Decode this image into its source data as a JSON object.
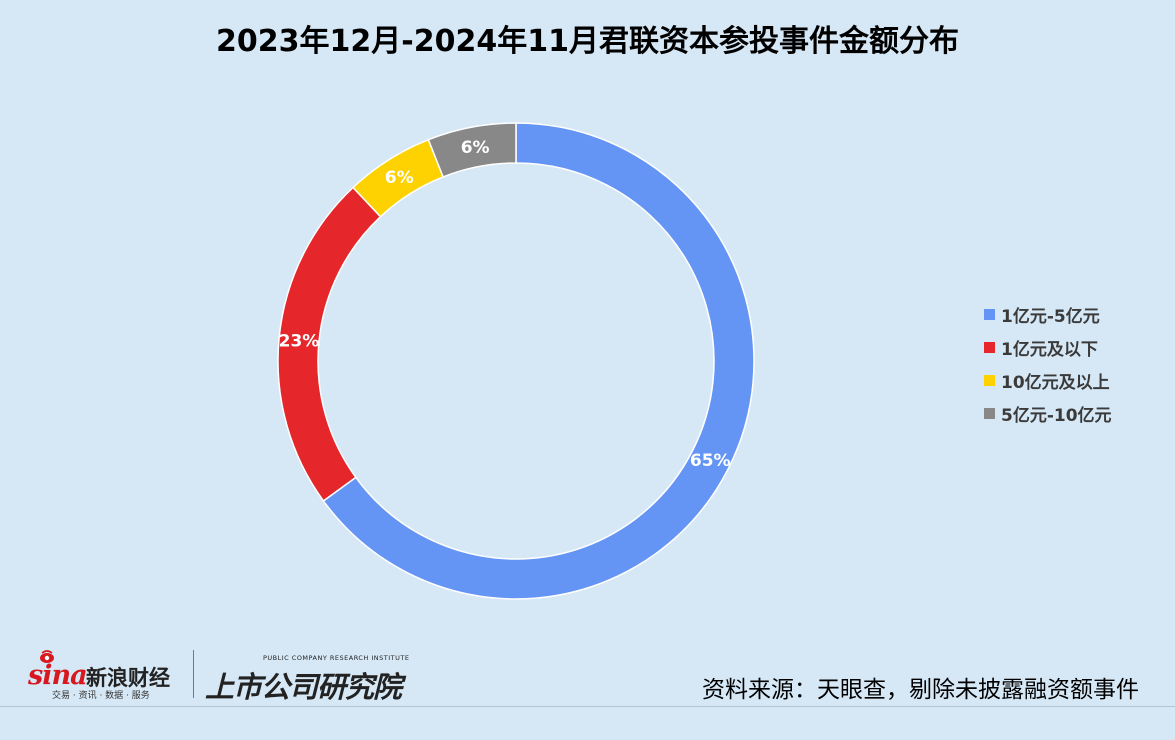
{
  "chart_data": {
    "type": "pie",
    "title": "2023年12月-2024年11月君联资本参投事件金额分布",
    "donut": true,
    "slices": [
      {
        "label": "1亿元-5亿元",
        "value": 65,
        "display": "65%",
        "color": "#6495f5"
      },
      {
        "label": "1亿元及以下",
        "value": 23,
        "display": "23%",
        "color": "#e5262a"
      },
      {
        "label": "10亿元及以上",
        "value": 6,
        "display": "6%",
        "color": "#fed200"
      },
      {
        "label": "5亿元-10亿元",
        "value": 6,
        "display": "6%",
        "color": "#888888"
      }
    ],
    "legend_position": "right"
  },
  "footer": {
    "source": "资料来源：天眼查，剔除未披露融资额事件",
    "sina_mark": "sina",
    "sina_name": "新浪财经",
    "sina_sub": "交易 · 资讯 · 数据 · 服务",
    "institute_en": "PUBLIC COMPANY RESEARCH INSTITUTE",
    "institute_cn": "上市公司研究院"
  }
}
